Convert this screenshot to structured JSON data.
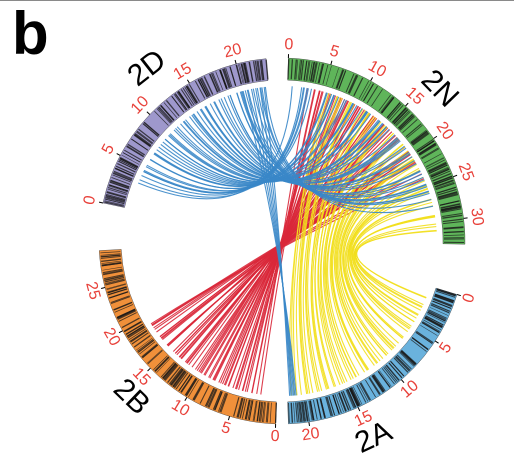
{
  "panel_label": "b",
  "chromosomes": [
    {
      "name": "2N",
      "length": 33,
      "color": "#5fb55a",
      "ticks": [
        0,
        5,
        10,
        15,
        20,
        25,
        30
      ]
    },
    {
      "name": "2A",
      "length": 22,
      "color": "#6ab2dd",
      "ticks": [
        0,
        5,
        10,
        15,
        20
      ]
    },
    {
      "name": "2B",
      "length": 29,
      "color": "#f0903a",
      "ticks": [
        0,
        5,
        10,
        15,
        20,
        25
      ]
    },
    {
      "name": "2D",
      "length": 23,
      "color": "#9e98cc",
      "ticks": [
        0,
        5,
        10,
        15,
        20
      ]
    }
  ],
  "link_colors": {
    "2D-2N": "#3a87c8",
    "2D-2A": "#3a87c8",
    "2B-2N": "#d9283a",
    "2N-2A": "#f2df1d",
    "tick_text": "#e8413a"
  },
  "link_groups": [
    {
      "name": "2D-2N",
      "a": "2D",
      "b": "2N"
    },
    {
      "name": "2B-2N",
      "a": "2B",
      "b": "2N"
    },
    {
      "name": "2N-2A",
      "a": "2N",
      "b": "2A"
    },
    {
      "name": "2D-2A",
      "a": "2D",
      "b": "2A"
    }
  ]
}
